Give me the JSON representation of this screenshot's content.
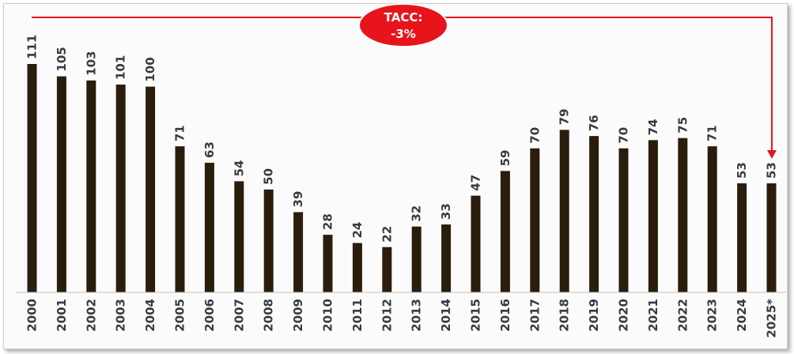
{
  "chart_data": {
    "type": "bar",
    "title": "",
    "xlabel": "",
    "ylabel": "",
    "categories": [
      "2000",
      "2001",
      "2002",
      "2003",
      "2004",
      "2005",
      "2006",
      "2007",
      "2008",
      "2009",
      "2010",
      "2011",
      "2012",
      "2013",
      "2014",
      "2015",
      "2016",
      "2017",
      "2018",
      "2019",
      "2020",
      "2021",
      "2022",
      "2023",
      "2024",
      "2025*"
    ],
    "values": [
      111,
      105,
      103,
      101,
      100,
      71,
      63,
      54,
      50,
      39,
      28,
      24,
      22,
      32,
      33,
      47,
      59,
      70,
      79,
      76,
      70,
      74,
      75,
      71,
      53,
      53
    ],
    "ylim": [
      0,
      111
    ],
    "grid": false,
    "legend": "none",
    "bar_color": "#2a1d0c",
    "annotation": {
      "line1": "TACC:",
      "line2": "-3%",
      "badge_color": "#e8141c",
      "arrow_color": "#e8141c"
    }
  }
}
